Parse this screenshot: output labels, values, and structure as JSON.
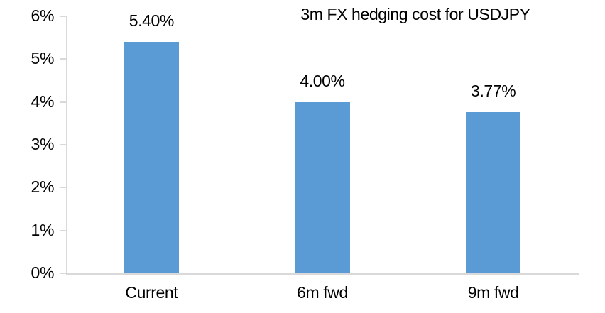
{
  "chart_data": {
    "type": "bar",
    "title": "3m FX hedging cost for USDJPY",
    "categories": [
      "Current",
      "6m fwd",
      "9m fwd"
    ],
    "values": [
      5.4,
      4.0,
      3.77
    ],
    "value_labels": [
      "5.40%",
      "4.00%",
      "3.77%"
    ],
    "ylim": [
      0,
      6
    ],
    "ytick_values": [
      0,
      1,
      2,
      3,
      4,
      5,
      6
    ],
    "ytick_labels": [
      "0%",
      "1%",
      "2%",
      "3%",
      "4%",
      "5%",
      "6%"
    ],
    "xlabel": "",
    "ylabel": "",
    "grid": "off",
    "legend": "none",
    "bar_color": "#5B9BD5",
    "axis_color": "#D9D9D9",
    "text_color": "#000000"
  }
}
